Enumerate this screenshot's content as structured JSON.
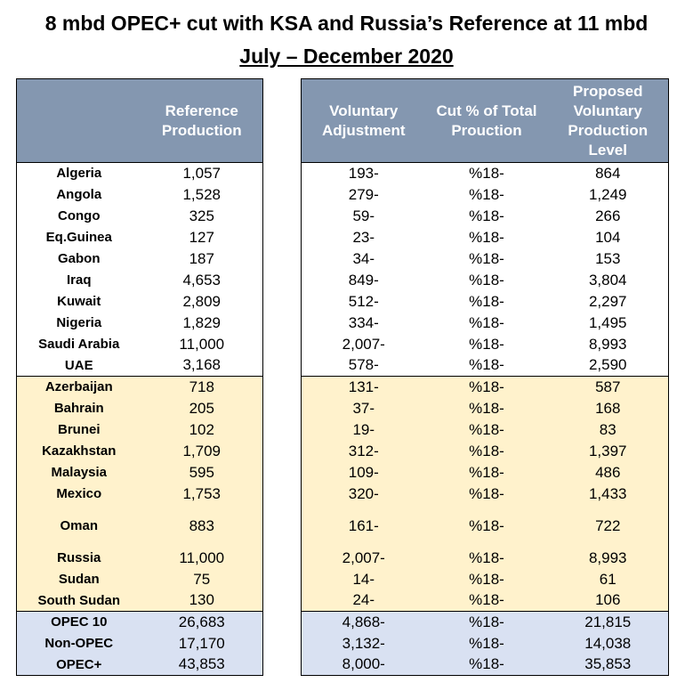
{
  "title": "8 mbd OPEC+ cut with KSA and Russia’s Reference at 11 mbd",
  "subtitle": "July – December 2020",
  "headers": {
    "country": "",
    "reference": "Reference Production",
    "adjustment": "Voluntary Adjustment",
    "cut_pct": "Cut % of Total Prouction",
    "proposed": "Proposed Voluntary Production Level"
  },
  "rows": [
    {
      "country": "Algeria",
      "reference": "1,057",
      "adjustment": "193-",
      "cut": "%18-",
      "proposed": "864",
      "group": "opec"
    },
    {
      "country": "Angola",
      "reference": "1,528",
      "adjustment": "279-",
      "cut": "%18-",
      "proposed": "1,249",
      "group": "opec"
    },
    {
      "country": "Congo",
      "reference": "325",
      "adjustment": "59-",
      "cut": "%18-",
      "proposed": "266",
      "group": "opec"
    },
    {
      "country": "Eq.Guinea",
      "reference": "127",
      "adjustment": "23-",
      "cut": "%18-",
      "proposed": "104",
      "group": "opec"
    },
    {
      "country": "Gabon",
      "reference": "187",
      "adjustment": "34-",
      "cut": "%18-",
      "proposed": "153",
      "group": "opec"
    },
    {
      "country": "Iraq",
      "reference": "4,653",
      "adjustment": "849-",
      "cut": "%18-",
      "proposed": "3,804",
      "group": "opec"
    },
    {
      "country": "Kuwait",
      "reference": "2,809",
      "adjustment": "512-",
      "cut": "%18-",
      "proposed": "2,297",
      "group": "opec"
    },
    {
      "country": "Nigeria",
      "reference": "1,829",
      "adjustment": "334-",
      "cut": "%18-",
      "proposed": "1,495",
      "group": "opec"
    },
    {
      "country": "Saudi Arabia",
      "reference": "11,000",
      "adjustment": "2,007-",
      "cut": "%18-",
      "proposed": "8,993",
      "group": "opec"
    },
    {
      "country": "UAE",
      "reference": "3,168",
      "adjustment": "578-",
      "cut": "%18-",
      "proposed": "2,590",
      "group": "opec"
    },
    {
      "country": "Azerbaijan",
      "reference": "718",
      "adjustment": "131-",
      "cut": "%18-",
      "proposed": "587",
      "group": "nonopec"
    },
    {
      "country": "Bahrain",
      "reference": "205",
      "adjustment": "37-",
      "cut": "%18-",
      "proposed": "168",
      "group": "nonopec"
    },
    {
      "country": "Brunei",
      "reference": "102",
      "adjustment": "19-",
      "cut": "%18-",
      "proposed": "83",
      "group": "nonopec"
    },
    {
      "country": "Kazakhstan",
      "reference": "1,709",
      "adjustment": "312-",
      "cut": "%18-",
      "proposed": "1,397",
      "group": "nonopec"
    },
    {
      "country": "Malaysia",
      "reference": "595",
      "adjustment": "109-",
      "cut": "%18-",
      "proposed": "486",
      "group": "nonopec"
    },
    {
      "country": "Mexico",
      "reference": "1,753",
      "adjustment": "320-",
      "cut": "%18-",
      "proposed": "1,433",
      "group": "nonopec"
    },
    {
      "country": "Oman",
      "reference": "883",
      "adjustment": "161-",
      "cut": "%18-",
      "proposed": "722",
      "group": "nonopec"
    },
    {
      "country": "Russia",
      "reference": "11,000",
      "adjustment": "2,007-",
      "cut": "%18-",
      "proposed": "8,993",
      "group": "nonopec"
    },
    {
      "country": "Sudan",
      "reference": "75",
      "adjustment": "14-",
      "cut": "%18-",
      "proposed": "61",
      "group": "nonopec"
    },
    {
      "country": "South Sudan",
      "reference": "130",
      "adjustment": "24-",
      "cut": "%18-",
      "proposed": "106",
      "group": "nonopec"
    },
    {
      "country": "OPEC 10",
      "reference": "26,683",
      "adjustment": "4,868-",
      "cut": "%18-",
      "proposed": "21,815",
      "group": "total"
    },
    {
      "country": "Non-OPEC",
      "reference": "17,170",
      "adjustment": "3,132-",
      "cut": "%18-",
      "proposed": "14,038",
      "group": "total"
    },
    {
      "country": "OPEC+",
      "reference": "43,853",
      "adjustment": "8,000-",
      "cut": "%18-",
      "proposed": "35,853",
      "group": "total"
    }
  ]
}
